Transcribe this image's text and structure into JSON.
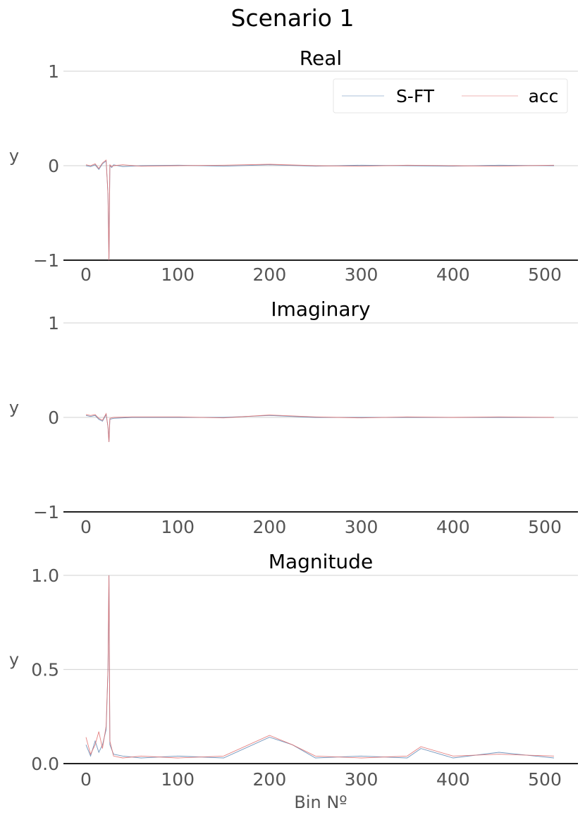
{
  "figure": {
    "title": "Scenario 1"
  },
  "legend": {
    "entries": [
      "S-FT",
      "acc"
    ],
    "placement": "top-right"
  },
  "colors": {
    "sft": "#5b84b1",
    "acc": "#e06c6c",
    "grid": "#d9d9d9",
    "axis": "#000000",
    "tick": "#555555"
  },
  "chart_data": [
    {
      "type": "line",
      "title": "Real",
      "ylabel": "y",
      "xlabel": "",
      "xlim": [
        -25,
        535
      ],
      "ylim": [
        -1,
        1
      ],
      "xticks": [
        0,
        100,
        200,
        300,
        400,
        500
      ],
      "yticks": [
        -1,
        0,
        1
      ],
      "ytick_labels": [
        "−1",
        "0",
        "1"
      ],
      "grid": true,
      "series": [
        {
          "name": "S-FT",
          "points": [
            [
              0,
              0
            ],
            [
              5,
              -0.01
            ],
            [
              10,
              0.01
            ],
            [
              14,
              -0.04
            ],
            [
              18,
              0.02
            ],
            [
              22,
              0.05
            ],
            [
              24,
              -0.3
            ],
            [
              25,
              -1.0
            ],
            [
              26,
              0.0
            ],
            [
              28,
              -0.02
            ],
            [
              30,
              0.01
            ],
            [
              40,
              -0.01
            ],
            [
              60,
              0.0
            ],
            [
              100,
              0.005
            ],
            [
              150,
              -0.005
            ],
            [
              200,
              0.01
            ],
            [
              250,
              -0.005
            ],
            [
              300,
              0.005
            ],
            [
              350,
              0.0
            ],
            [
              400,
              -0.005
            ],
            [
              450,
              0.005
            ],
            [
              510,
              0.0
            ]
          ]
        },
        {
          "name": "acc",
          "points": [
            [
              0,
              0.01
            ],
            [
              5,
              0.0
            ],
            [
              10,
              0.02
            ],
            [
              14,
              -0.03
            ],
            [
              18,
              0.03
            ],
            [
              22,
              0.06
            ],
            [
              24,
              -0.3
            ],
            [
              25,
              -1.0
            ],
            [
              26,
              0.01
            ],
            [
              28,
              -0.01
            ],
            [
              30,
              0.0
            ],
            [
              40,
              0.01
            ],
            [
              60,
              -0.005
            ],
            [
              100,
              0.0
            ],
            [
              150,
              0.005
            ],
            [
              200,
              0.015
            ],
            [
              250,
              0.0
            ],
            [
              300,
              -0.005
            ],
            [
              350,
              0.005
            ],
            [
              400,
              0.0
            ],
            [
              450,
              -0.005
            ],
            [
              510,
              0.005
            ]
          ]
        }
      ]
    },
    {
      "type": "line",
      "title": "Imaginary",
      "ylabel": "y",
      "xlabel": "",
      "xlim": [
        -25,
        535
      ],
      "ylim": [
        -1,
        1
      ],
      "xticks": [
        0,
        100,
        200,
        300,
        400,
        500
      ],
      "yticks": [
        -1,
        0,
        1
      ],
      "ytick_labels": [
        "−1",
        "0",
        "1"
      ],
      "grid": true,
      "series": [
        {
          "name": "S-FT",
          "points": [
            [
              0,
              0.02
            ],
            [
              5,
              0.01
            ],
            [
              10,
              0.02
            ],
            [
              14,
              -0.02
            ],
            [
              18,
              -0.04
            ],
            [
              22,
              0.03
            ],
            [
              24,
              -0.1
            ],
            [
              25,
              -0.26
            ],
            [
              26,
              -0.02
            ],
            [
              30,
              -0.01
            ],
            [
              50,
              0.0
            ],
            [
              100,
              0.0
            ],
            [
              150,
              0.0
            ],
            [
              200,
              0.02
            ],
            [
              250,
              0.0
            ],
            [
              300,
              0.0
            ],
            [
              350,
              0.0
            ],
            [
              400,
              0.0
            ],
            [
              450,
              0.0
            ],
            [
              510,
              0.0
            ]
          ]
        },
        {
          "name": "acc",
          "points": [
            [
              0,
              0.03
            ],
            [
              5,
              0.02
            ],
            [
              10,
              0.03
            ],
            [
              14,
              -0.01
            ],
            [
              18,
              -0.03
            ],
            [
              22,
              0.04
            ],
            [
              24,
              -0.1
            ],
            [
              25,
              -0.26
            ],
            [
              26,
              -0.01
            ],
            [
              30,
              0.0
            ],
            [
              50,
              0.005
            ],
            [
              100,
              0.005
            ],
            [
              150,
              -0.005
            ],
            [
              200,
              0.025
            ],
            [
              250,
              0.005
            ],
            [
              300,
              -0.005
            ],
            [
              350,
              0.005
            ],
            [
              400,
              0.0
            ],
            [
              450,
              0.005
            ],
            [
              510,
              0.0
            ]
          ]
        }
      ]
    },
    {
      "type": "line",
      "title": "Magnitude",
      "ylabel": "y",
      "xlabel": "Bin Nº",
      "xlim": [
        -25,
        535
      ],
      "ylim": [
        0,
        1
      ],
      "xticks": [
        0,
        100,
        200,
        300,
        400,
        500
      ],
      "yticks": [
        0,
        0.5,
        1
      ],
      "ytick_labels": [
        "0.0",
        "0.5",
        "1.0"
      ],
      "grid": true,
      "series": [
        {
          "name": "S-FT",
          "points": [
            [
              0,
              0.1
            ],
            [
              5,
              0.04
            ],
            [
              10,
              0.12
            ],
            [
              14,
              0.06
            ],
            [
              18,
              0.1
            ],
            [
              22,
              0.18
            ],
            [
              24,
              0.5
            ],
            [
              25,
              1.0
            ],
            [
              26,
              0.1
            ],
            [
              30,
              0.05
            ],
            [
              40,
              0.04
            ],
            [
              60,
              0.03
            ],
            [
              100,
              0.04
            ],
            [
              150,
              0.03
            ],
            [
              200,
              0.14
            ],
            [
              225,
              0.1
            ],
            [
              250,
              0.03
            ],
            [
              300,
              0.04
            ],
            [
              350,
              0.03
            ],
            [
              365,
              0.08
            ],
            [
              400,
              0.03
            ],
            [
              450,
              0.06
            ],
            [
              510,
              0.03
            ]
          ]
        },
        {
          "name": "acc",
          "points": [
            [
              0,
              0.14
            ],
            [
              5,
              0.05
            ],
            [
              10,
              0.1
            ],
            [
              14,
              0.17
            ],
            [
              18,
              0.08
            ],
            [
              22,
              0.2
            ],
            [
              24,
              0.5
            ],
            [
              25,
              1.0
            ],
            [
              26,
              0.12
            ],
            [
              30,
              0.04
            ],
            [
              40,
              0.03
            ],
            [
              60,
              0.04
            ],
            [
              100,
              0.03
            ],
            [
              150,
              0.04
            ],
            [
              200,
              0.15
            ],
            [
              225,
              0.1
            ],
            [
              250,
              0.04
            ],
            [
              300,
              0.03
            ],
            [
              350,
              0.04
            ],
            [
              365,
              0.09
            ],
            [
              400,
              0.04
            ],
            [
              450,
              0.05
            ],
            [
              510,
              0.04
            ]
          ]
        }
      ]
    }
  ]
}
